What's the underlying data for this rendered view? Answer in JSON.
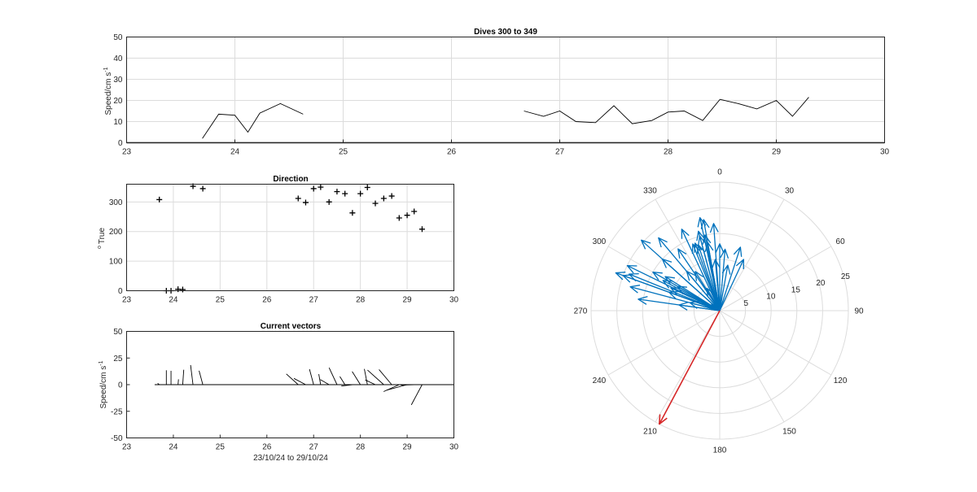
{
  "chart_data": [
    {
      "type": "line",
      "title": "Dives 300 to 349",
      "ylabel": "Speed/cm s",
      "ylabel_superscript": "-1",
      "xlim": [
        23,
        30
      ],
      "ylim": [
        0,
        50
      ],
      "xticks": [
        "23",
        "24",
        "25",
        "26",
        "27",
        "28",
        "29",
        "30"
      ],
      "yticks": [
        "0",
        "10",
        "20",
        "30",
        "40",
        "50"
      ],
      "grid": true,
      "segments": [
        {
          "x": [
            23.7,
            23.85,
            24.0,
            24.12,
            24.23,
            24.42,
            24.63
          ],
          "y": [
            2,
            13.5,
            13,
            5,
            14,
            18.5,
            13.5
          ]
        },
        {
          "x": [
            26.67,
            26.85,
            27.0,
            27.15,
            27.33,
            27.5,
            27.67,
            27.85,
            28.0,
            28.15,
            28.32,
            28.48,
            28.65,
            28.82,
            29.0,
            29.15,
            29.3
          ],
          "y": [
            15,
            12.5,
            15,
            10,
            9.5,
            17.5,
            9,
            10.5,
            14.5,
            15,
            10.5,
            20.5,
            18.5,
            16,
            20,
            12.5,
            21.5
          ]
        }
      ]
    },
    {
      "type": "scatter",
      "title": "Direction",
      "ylabel": "True",
      "ylabel_superscript": "o",
      "xlim": [
        23,
        30
      ],
      "ylim": [
        0,
        360
      ],
      "xticks": [
        "23",
        "24",
        "25",
        "26",
        "27",
        "28",
        "29",
        "30"
      ],
      "yticks": [
        "0",
        "100",
        "200",
        "300"
      ],
      "grid": true,
      "marker": "+",
      "x": [
        23.7,
        23.85,
        23.95,
        24.1,
        24.2,
        24.42,
        24.63,
        26.67,
        26.83,
        27.0,
        27.15,
        27.33,
        27.5,
        27.67,
        27.83,
        28.0,
        28.15,
        28.32,
        28.5,
        28.67,
        28.83,
        29.0,
        29.15,
        29.32
      ],
      "y": [
        308,
        0,
        0,
        5,
        4,
        353,
        345,
        312,
        298,
        345,
        350,
        300,
        335,
        328,
        263,
        328,
        349,
        295,
        312,
        320,
        246,
        255,
        268,
        208
      ]
    },
    {
      "type": "line",
      "title": "Current vectors",
      "ylabel": "Speed/cm s",
      "ylabel_superscript": "-1",
      "xlabel": "23/10/24 to 29/10/24",
      "xlim": [
        23,
        30
      ],
      "ylim": [
        -50,
        50
      ],
      "xticks": [
        "23",
        "24",
        "25",
        "26",
        "27",
        "28",
        "29",
        "30"
      ],
      "yticks": [
        "50",
        "25",
        "0",
        "-25",
        "-50"
      ],
      "grid": false,
      "vectors": {
        "t": [
          23.7,
          23.85,
          23.95,
          24.1,
          24.2,
          24.42,
          24.63,
          26.67,
          26.83,
          27.0,
          27.15,
          27.33,
          27.5,
          27.67,
          27.83,
          28.0,
          28.15,
          28.32,
          28.5,
          28.67,
          28.83,
          29.0,
          29.15,
          29.32
        ],
        "speed": [
          2,
          13.5,
          13,
          5,
          14,
          18.5,
          13.5,
          15,
          12.5,
          15,
          10,
          9.5,
          17.5,
          9,
          10.5,
          14.5,
          15,
          10.5,
          20.5,
          18.5,
          16,
          20,
          12.5,
          21.5
        ],
        "dir": [
          308,
          0,
          0,
          5,
          4,
          353,
          345,
          312,
          298,
          345,
          350,
          300,
          335,
          328,
          263,
          328,
          349,
          295,
          312,
          320,
          246,
          255,
          268,
          208
        ]
      }
    },
    {
      "type": "polar",
      "angle_ticks": [
        "0",
        "30",
        "60",
        "90",
        "120",
        "150",
        "180",
        "210",
        "240",
        "270",
        "300",
        "330"
      ],
      "radial_ticks": [
        "5",
        "10",
        "15",
        "20",
        "25"
      ],
      "rmax": 25,
      "vector_color": "#0072BD",
      "mean_color": "#D62728",
      "vectors": {
        "speed": [
          2,
          13.5,
          13,
          5,
          14,
          18.5,
          13.5,
          15,
          12.5,
          15,
          10,
          9.5,
          17.5,
          9,
          10.5,
          14.5,
          15,
          10.5,
          20.5,
          18.5,
          16,
          20,
          12.5,
          21.5,
          14,
          16,
          18,
          17,
          13,
          9,
          11,
          12,
          10,
          15,
          18,
          20,
          19,
          6,
          8
        ],
        "dir": [
          308,
          350,
          0,
          330,
          338,
          348,
          342,
          312,
          298,
          345,
          355,
          300,
          335,
          328,
          290,
          326,
          349,
          295,
          312,
          320,
          278,
          296,
          302,
          290,
          340,
          345,
          350,
          356,
          18,
          10,
          25,
          5,
          320,
          300,
          285,
          290,
          292,
          285,
          278
        ]
      },
      "mean_vector": {
        "speed": 25,
        "dir": 208
      }
    }
  ]
}
